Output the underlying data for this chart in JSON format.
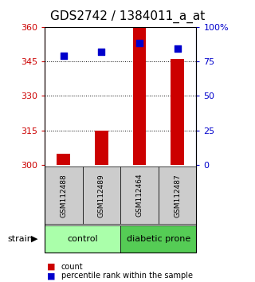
{
  "title": "GDS2742 / 1384011_a_at",
  "samples": [
    "GSM112488",
    "GSM112489",
    "GSM112464",
    "GSM112487"
  ],
  "counts": [
    305,
    315,
    360,
    346
  ],
  "percentiles": [
    79,
    82,
    88,
    84
  ],
  "ylim": [
    300,
    360
  ],
  "yticks": [
    300,
    315,
    330,
    345,
    360
  ],
  "y2lim": [
    0,
    100
  ],
  "y2ticks": [
    0,
    25,
    50,
    75,
    100
  ],
  "y2ticklabels": [
    "0",
    "25",
    "50",
    "75",
    "100%"
  ],
  "bar_color": "#cc0000",
  "dot_color": "#0000cc",
  "groups": [
    {
      "label": "control",
      "indices": [
        0,
        1
      ],
      "color": "#aaffaa"
    },
    {
      "label": "diabetic prone",
      "indices": [
        2,
        3
      ],
      "color": "#55cc55"
    }
  ],
  "strain_label": "strain",
  "legend_count_label": "count",
  "legend_pct_label": "percentile rank within the sample",
  "bar_width": 0.35,
  "dot_size": 30,
  "title_fontsize": 11,
  "tick_fontsize": 8
}
